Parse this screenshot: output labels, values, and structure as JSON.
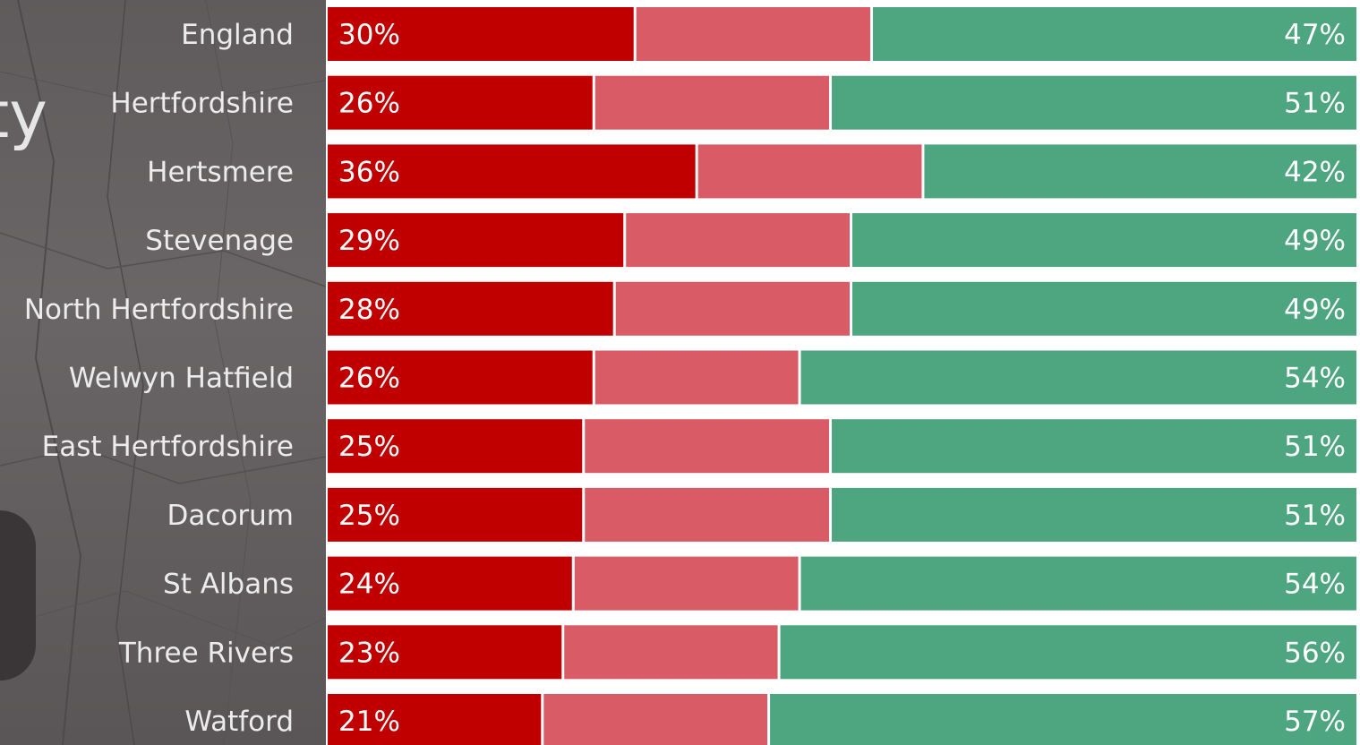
{
  "colors": {
    "segment_1": "#c00000",
    "segment_2": "#d85b65",
    "segment_3": "#4ea680",
    "panel": "#625e5f",
    "label": "#ececec"
  },
  "panel": {
    "partial_title": "ty"
  },
  "chart_data": {
    "type": "bar",
    "orientation": "horizontal",
    "stacked": true,
    "normalized_total": 100,
    "categories": [
      "England",
      "Hertfordshire",
      "Hertsmere",
      "Stevenage",
      "North Hertfordshire",
      "Welwyn Hatfield",
      "East Hertfordshire",
      "Dacorum",
      "St Albans",
      "Three Rivers",
      "Watford"
    ],
    "series": [
      {
        "values": [
          30,
          26,
          36,
          29,
          28,
          26,
          25,
          25,
          24,
          23,
          21
        ],
        "labels": [
          "30%",
          "26%",
          "36%",
          "29%",
          "28%",
          "26%",
          "25%",
          "25%",
          "24%",
          "23%",
          "21%"
        ]
      },
      {
        "values": [
          23,
          23,
          22,
          22,
          23,
          20,
          24,
          24,
          22,
          21,
          22
        ]
      },
      {
        "values": [
          47,
          51,
          42,
          49,
          49,
          54,
          51,
          51,
          54,
          56,
          57
        ],
        "labels": [
          "47%",
          "51%",
          "42%",
          "49%",
          "49%",
          "54%",
          "51%",
          "51%",
          "54%",
          "56%",
          "57%"
        ]
      }
    ],
    "xlim": [
      0,
      100
    ],
    "grid": false,
    "legend": "none"
  }
}
